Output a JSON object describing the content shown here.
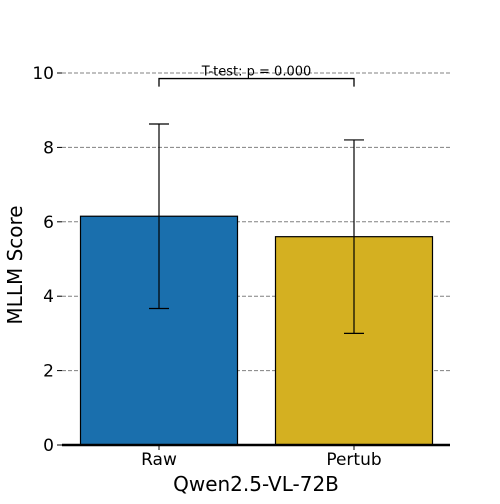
{
  "chart_data": {
    "type": "bar",
    "title": "",
    "xlabel": "Qwen2.5-VL-72B",
    "ylabel": "MLLM Score",
    "categories": [
      "Raw",
      "Pertub"
    ],
    "values": [
      6.15,
      5.6
    ],
    "error": [
      2.48,
      2.6
    ],
    "colors": [
      "#1a6fad",
      "#d4b021"
    ],
    "ylim": [
      0,
      10
    ],
    "yticks": [
      0,
      2,
      4,
      6,
      8,
      10
    ],
    "ytick_labels": [
      "0",
      "2",
      "4",
      "6",
      "8",
      "10"
    ],
    "grid": "horizontal dashed",
    "annotation": {
      "text": "T-test: p = 0.000",
      "bracket_y": 9.85
    }
  }
}
